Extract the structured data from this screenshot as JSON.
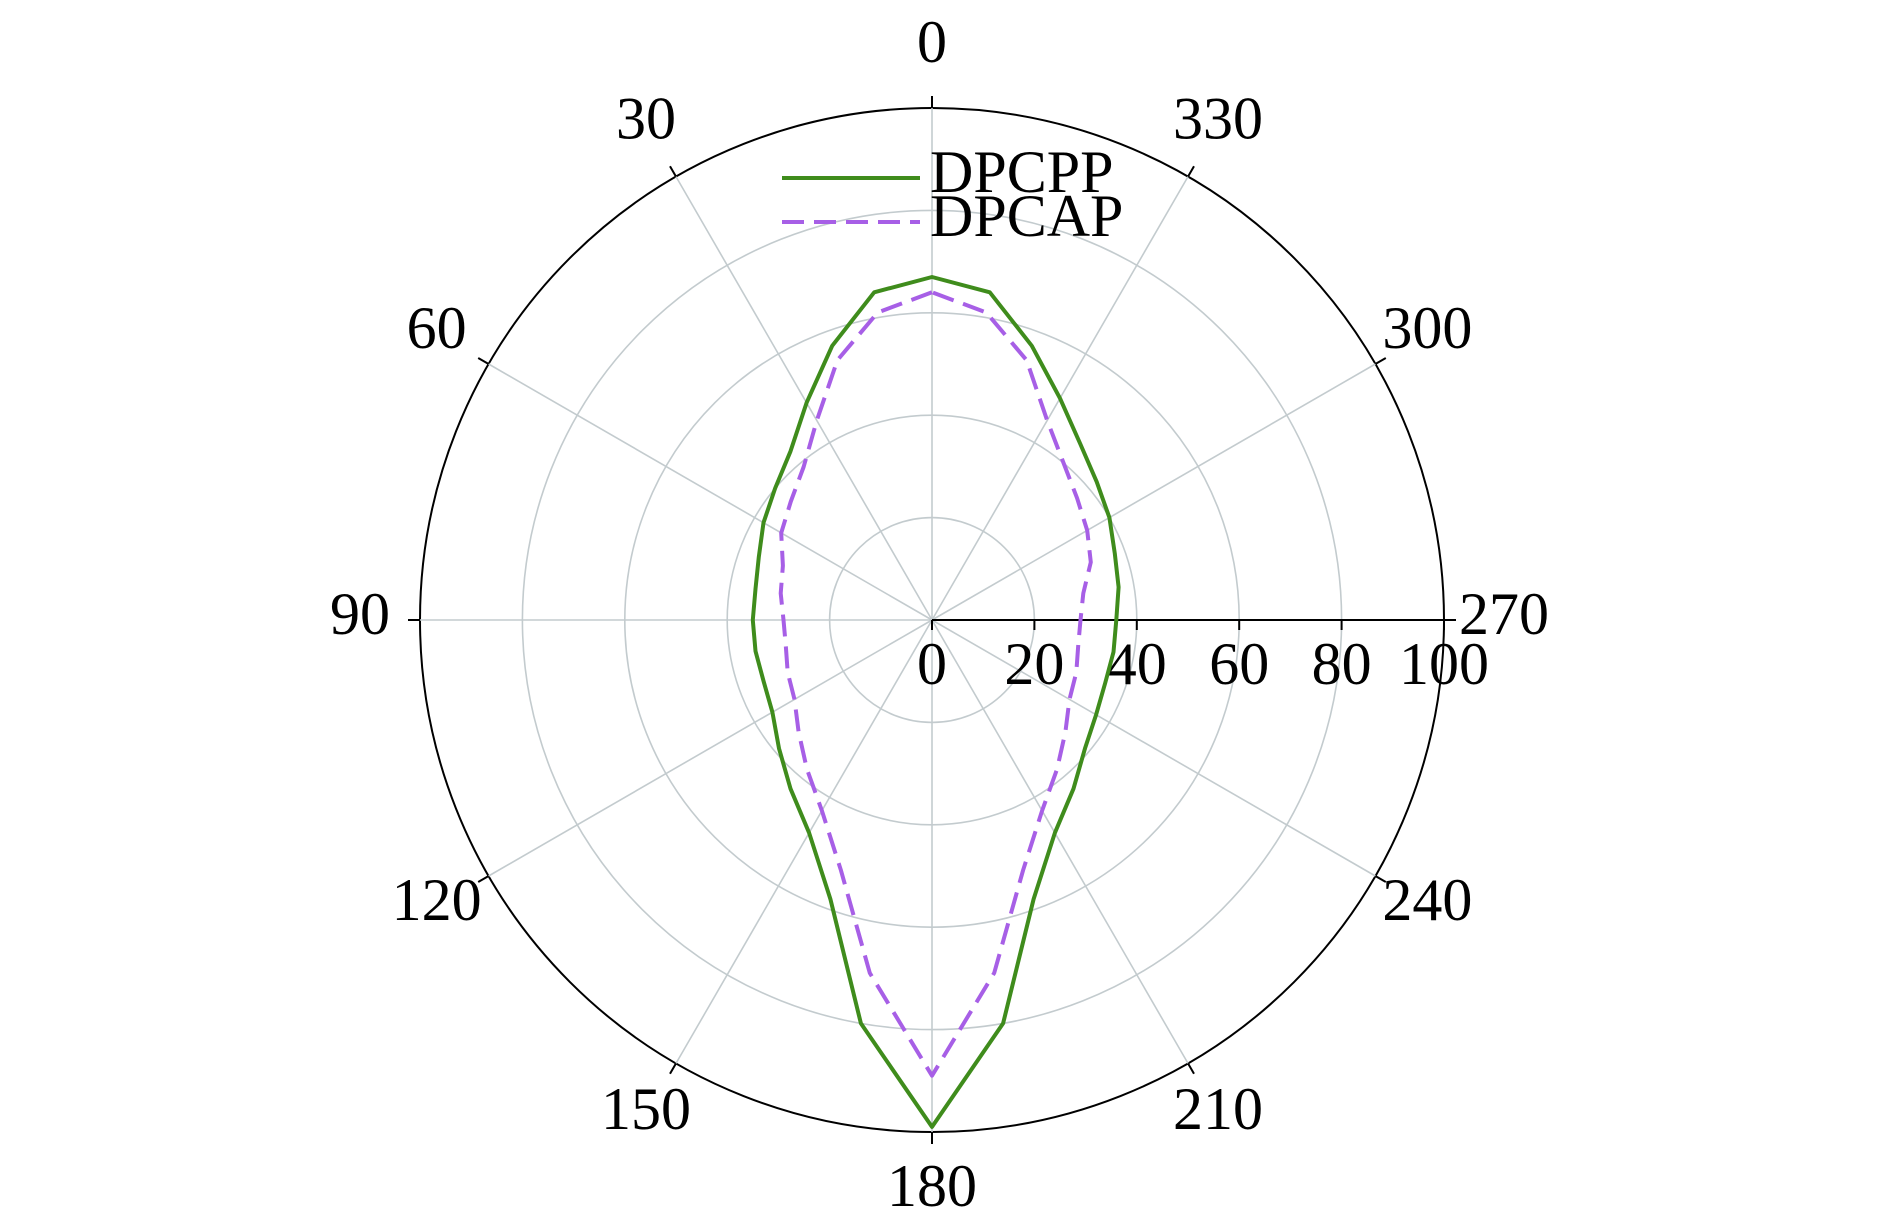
{
  "chart_data": {
    "type": "polar",
    "theta_zero": "N",
    "theta_direction": "counterclockwise",
    "theta": [
      0,
      10,
      20,
      30,
      40,
      50,
      60,
      70,
      80,
      90,
      100,
      110,
      120,
      130,
      140,
      150,
      160,
      170,
      180,
      190,
      200,
      210,
      220,
      230,
      240,
      250,
      260,
      270,
      280,
      290,
      300,
      310,
      320,
      330,
      340,
      350
    ],
    "series": [
      {
        "name": "DPCPP",
        "color": "#3f8c1c",
        "linestyle": "solid",
        "values": [
          67,
          65,
          57,
          49,
          43,
          40,
          38,
          36,
          35,
          35,
          35,
          35,
          36,
          39,
          43,
          48,
          58,
          80,
          99,
          80,
          58,
          48,
          43,
          39,
          37,
          36,
          36,
          36,
          37,
          38,
          40,
          42,
          45,
          50,
          57,
          65
        ]
      },
      {
        "name": "DPCAP",
        "color": "#a75fe6",
        "linestyle": "dashed",
        "values": [
          64,
          61,
          54,
          45,
          39,
          36,
          34,
          31,
          30,
          29,
          29,
          30,
          31,
          34,
          38,
          43,
          52,
          70,
          89,
          70,
          52,
          43,
          38,
          34,
          31,
          30,
          29,
          29,
          30,
          33,
          35,
          37,
          40,
          45,
          54,
          61
        ]
      }
    ],
    "rlim": [
      0,
      100
    ],
    "rticks": [
      0,
      20,
      40,
      60,
      80,
      100
    ],
    "thetaticks": [
      0,
      30,
      60,
      90,
      120,
      150,
      180,
      210,
      240,
      270,
      300,
      330
    ],
    "grid": true,
    "legend": "upper center"
  }
}
